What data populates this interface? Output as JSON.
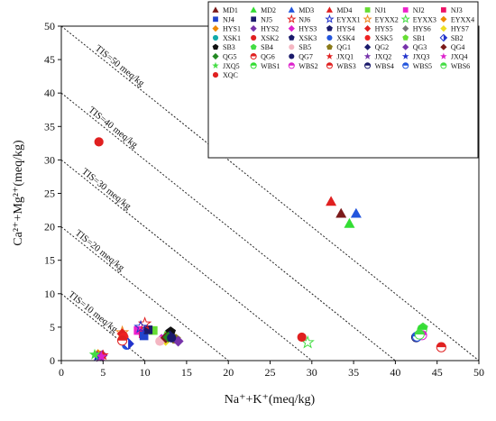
{
  "chart_data": {
    "type": "scatter",
    "title": "",
    "xlabel": "Na⁺+K⁺(meq/kg)",
    "ylabel": "Ca²⁺+Mg²⁺(meq/kg)",
    "xlim": [
      0,
      50
    ],
    "ylim": [
      0,
      50
    ],
    "xticks": [
      "0",
      "5",
      "10",
      "15",
      "20",
      "25",
      "30",
      "35",
      "40",
      "45",
      "50"
    ],
    "yticks": [
      "0",
      "5",
      "10",
      "15",
      "20",
      "25",
      "30",
      "35",
      "40",
      "45",
      "50"
    ],
    "grid": false,
    "legend_position": "top-right",
    "reference_lines": [
      {
        "label": "TIS=10 meq/kg",
        "total": 10
      },
      {
        "label": "TIS=20 meq/kg",
        "total": 20
      },
      {
        "label": "TIS=30 meq/kg",
        "total": 30
      },
      {
        "label": "TIS=40 meq/kg",
        "total": 40
      },
      {
        "label": "TIS=50 meq/kg",
        "total": 50
      }
    ],
    "series": [
      {
        "name": "MD1",
        "color": "#7b1a1a",
        "marker": "triangle",
        "x": 33.5,
        "y": 22.0
      },
      {
        "name": "MD2",
        "color": "#33dd33",
        "marker": "triangle",
        "x": 34.5,
        "y": 20.5
      },
      {
        "name": "MD3",
        "color": "#2255dd",
        "marker": "triangle",
        "x": 35.3,
        "y": 22.0
      },
      {
        "name": "MD4",
        "color": "#e02020",
        "marker": "triangle",
        "x": 32.3,
        "y": 23.8
      },
      {
        "name": "NJ1",
        "color": "#66dd33",
        "marker": "square",
        "x": 11.0,
        "y": 4.5
      },
      {
        "name": "NJ2",
        "color": "#ee22cc",
        "marker": "square",
        "x": 9.2,
        "y": 4.5
      },
      {
        "name": "NJ3",
        "color": "#ee1166",
        "marker": "square",
        "x": 9.8,
        "y": 4.0
      },
      {
        "name": "NJ4",
        "color": "#2244cc",
        "marker": "square",
        "x": 9.9,
        "y": 3.7
      },
      {
        "name": "NJ5",
        "color": "#1a1a6b",
        "marker": "square",
        "x": 10.4,
        "y": 4.6
      },
      {
        "name": "NJ6",
        "color": "#e02020",
        "marker": "star-open",
        "x": 10.0,
        "y": 5.5
      },
      {
        "name": "EYXX1",
        "color": "#2233cc",
        "marker": "star-open",
        "x": 9.5,
        "y": 5.0
      },
      {
        "name": "EYXX2",
        "color": "#ee8822",
        "marker": "star-open",
        "x": 7.3,
        "y": 4.2
      },
      {
        "name": "EYXX3",
        "color": "#44dd44",
        "marker": "star-open",
        "x": 29.5,
        "y": 2.7
      },
      {
        "name": "EYXX4",
        "color": "#ee8800",
        "marker": "diamond",
        "x": 4.4,
        "y": 0.9
      },
      {
        "name": "HYS1",
        "color": "#ee8800",
        "marker": "diamond",
        "x": 4.7,
        "y": 0.7
      },
      {
        "name": "HYS2",
        "color": "#7733aa",
        "marker": "diamond",
        "x": 4.9,
        "y": 0.8
      },
      {
        "name": "HYS3",
        "color": "#dd22cc",
        "marker": "diamond",
        "x": 12.0,
        "y": 3.2
      },
      {
        "name": "HYS4",
        "color": "#1a1a6b",
        "marker": "pentagon",
        "x": 43.0,
        "y": 3.8
      },
      {
        "name": "HYS5",
        "color": "#e02020",
        "marker": "diamond",
        "x": 7.3,
        "y": 4.0
      },
      {
        "name": "HYS6",
        "color": "#777777",
        "marker": "diamond",
        "x": 13.3,
        "y": 3.5
      },
      {
        "name": "HYS7",
        "color": "#eedd22",
        "marker": "diamond",
        "x": 12.5,
        "y": 3.0
      },
      {
        "name": "XSK1",
        "color": "#11aaaa",
        "marker": "circle",
        "x": 12.7,
        "y": 3.6
      },
      {
        "name": "XSK2",
        "color": "#e02020",
        "marker": "circle",
        "x": 28.8,
        "y": 3.5
      },
      {
        "name": "XSK3",
        "color": "#1a1a6b",
        "marker": "pentagon",
        "x": 13.0,
        "y": 4.2
      },
      {
        "name": "XSK4",
        "color": "#2255dd",
        "marker": "circle",
        "x": 7.8,
        "y": 2.3
      },
      {
        "name": "XSK5",
        "color": "#ee2222",
        "marker": "circle",
        "x": 7.5,
        "y": 3.5
      },
      {
        "name": "SB1",
        "color": "#66dd33",
        "marker": "pentagon",
        "x": 12.9,
        "y": 4.0
      },
      {
        "name": "SB2",
        "color": "#2233cc",
        "marker": "diamond-half",
        "x": 8.0,
        "y": 2.5
      },
      {
        "name": "SB3",
        "color": "#111111",
        "marker": "pentagon",
        "x": 13.1,
        "y": 4.3
      },
      {
        "name": "SB4",
        "color": "#44dd44",
        "marker": "pentagon",
        "x": 43.3,
        "y": 4.9
      },
      {
        "name": "SB5",
        "color": "#f4b6c2",
        "marker": "circle",
        "x": 11.8,
        "y": 2.9
      },
      {
        "name": "QG1",
        "color": "#8a7a1a",
        "marker": "pentagon",
        "x": 13.7,
        "y": 3.2
      },
      {
        "name": "QG2",
        "color": "#1a1a6b",
        "marker": "diamond",
        "x": 13.0,
        "y": 3.7
      },
      {
        "name": "QG3",
        "color": "#7733aa",
        "marker": "diamond",
        "x": 14.0,
        "y": 2.9
      },
      {
        "name": "QG4",
        "color": "#7b1a1a",
        "marker": "diamond",
        "x": 12.5,
        "y": 3.4
      },
      {
        "name": "QG5",
        "color": "#228822",
        "marker": "diamond",
        "x": 12.8,
        "y": 3.5
      },
      {
        "name": "QG6",
        "color": "#e02020",
        "marker": "circle-half",
        "x": 7.3,
        "y": 3.0
      },
      {
        "name": "QG7",
        "color": "#1a1a6b",
        "marker": "circle",
        "x": 13.2,
        "y": 3.4
      },
      {
        "name": "JXQ1",
        "color": "#e02020",
        "marker": "star",
        "x": 5.0,
        "y": 0.8
      },
      {
        "name": "JXQ2",
        "color": "#7733aa",
        "marker": "star",
        "x": 4.6,
        "y": 0.5
      },
      {
        "name": "JXQ3",
        "color": "#2233cc",
        "marker": "star",
        "x": 4.3,
        "y": 0.6
      },
      {
        "name": "JXQ4",
        "color": "#dd22cc",
        "marker": "star",
        "x": 4.8,
        "y": 0.6
      },
      {
        "name": "JXQ5",
        "color": "#44dd44",
        "marker": "star",
        "x": 4.0,
        "y": 0.9
      },
      {
        "name": "WBS1",
        "color": "#33dd33",
        "marker": "circle-half",
        "x": 43.2,
        "y": 4.6
      },
      {
        "name": "WBS2",
        "color": "#dd22cc",
        "marker": "circle-half",
        "x": 43.2,
        "y": 3.8
      },
      {
        "name": "WBS3",
        "color": "#e02020",
        "marker": "circle-half",
        "x": 45.5,
        "y": 2.0
      },
      {
        "name": "WBS4",
        "color": "#1a1a6b",
        "marker": "circle-half",
        "x": 42.5,
        "y": 3.5
      },
      {
        "name": "WBS5",
        "color": "#2255dd",
        "marker": "circle-half",
        "x": 42.6,
        "y": 3.6
      },
      {
        "name": "WBS6",
        "color": "#44dd44",
        "marker": "circle-half",
        "x": 42.9,
        "y": 3.9
      },
      {
        "name": "XQC",
        "color": "#e02020",
        "marker": "circle",
        "x": 4.5,
        "y": 32.7
      }
    ]
  }
}
